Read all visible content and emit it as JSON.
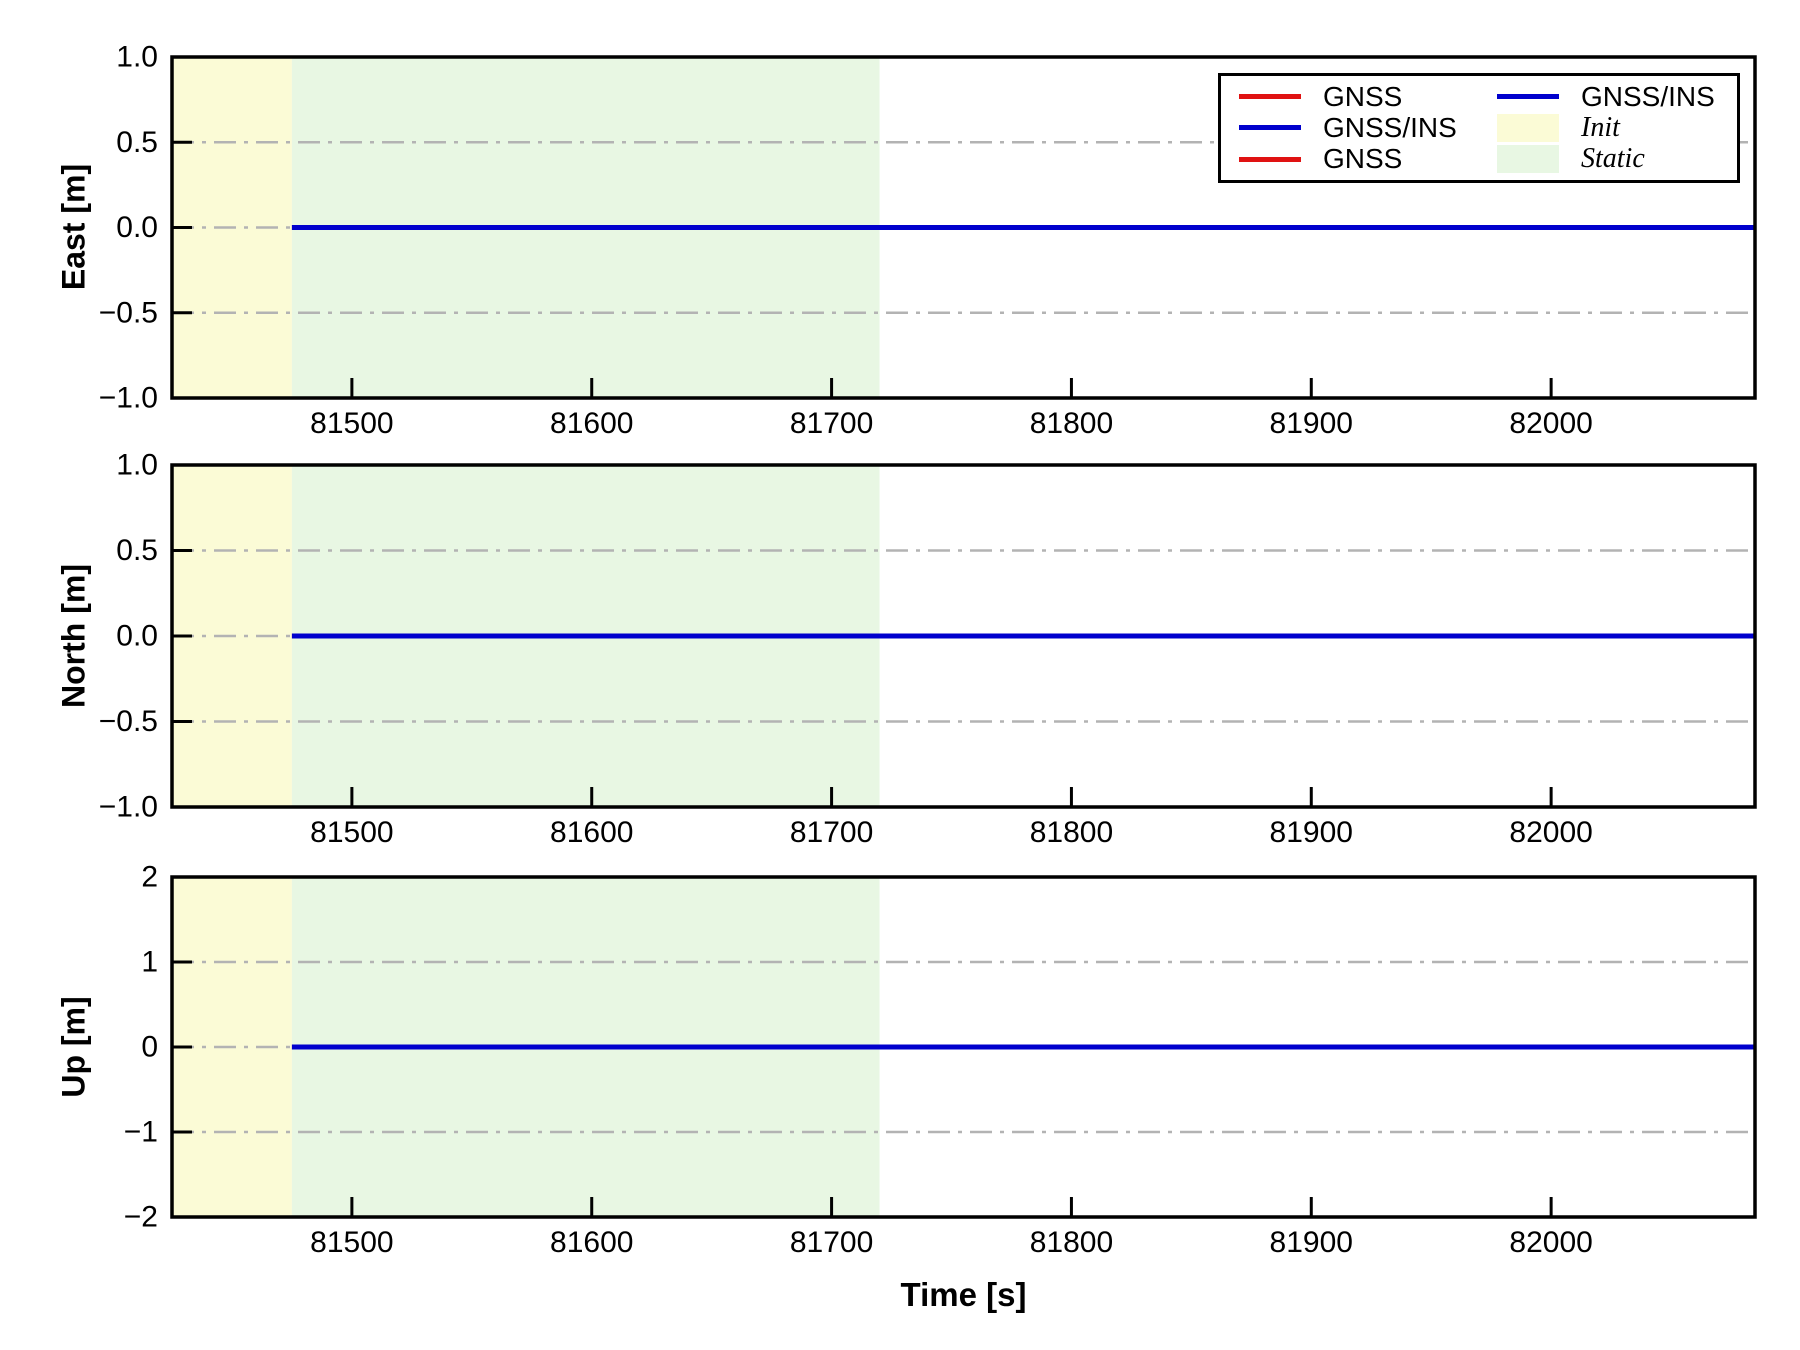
{
  "chart_data": {
    "type": "line",
    "title": "",
    "x_axis": {
      "label": "Time [s]",
      "range": [
        81425,
        82085
      ],
      "ticks": [
        81500,
        81600,
        81700,
        81800,
        81900,
        82000
      ]
    },
    "subplots": [
      {
        "ylabel": "East [m]",
        "ylim": [
          -1.0,
          1.0
        ],
        "yticks": [
          1.0,
          0.5,
          0.0,
          -0.5,
          -1.0
        ],
        "ytick_labels": [
          "1.0",
          "0.5",
          "0.0",
          "−0.5",
          "−1.0"
        ],
        "grid_y": [
          0.5,
          0.0,
          -0.5
        ]
      },
      {
        "ylabel": "North [m]",
        "ylim": [
          -1.0,
          1.0
        ],
        "yticks": [
          1.0,
          0.5,
          0.0,
          -0.5,
          -1.0
        ],
        "ytick_labels": [
          "1.0",
          "0.5",
          "0.0",
          "−0.5",
          "−1.0"
        ],
        "grid_y": [
          0.5,
          0.0,
          -0.5
        ]
      },
      {
        "ylabel": "Up [m]",
        "ylim": [
          -2.0,
          2.0
        ],
        "yticks": [
          2,
          1,
          0,
          -1,
          -2
        ],
        "ytick_labels": [
          "2",
          "1",
          "0",
          "−1",
          "−2"
        ],
        "grid_y": [
          1,
          0,
          -1
        ]
      }
    ],
    "series": [
      {
        "name": "GNSS",
        "color": "#e01212",
        "x": [
          81475,
          82085
        ],
        "y": [
          0,
          0
        ]
      },
      {
        "name": "GNSS/INS",
        "color": "#0000cd",
        "x": [
          81475,
          82085
        ],
        "y": [
          0,
          0
        ]
      }
    ],
    "regions": [
      {
        "name": "Init",
        "color": "#fbfbd6",
        "span": [
          81425,
          81475
        ]
      },
      {
        "name": "Static",
        "color": "#e8f7e3",
        "span": [
          81475,
          81720
        ]
      }
    ],
    "style": {
      "grid_color": "#b3b3b3",
      "axis_color": "#000000",
      "background": "#ffffff"
    },
    "legend": {
      "position": "upper right",
      "columns": [
        {
          "entries": [
            {
              "type": "line",
              "color": "#e01212",
              "label": "GNSS",
              "italic": false
            },
            {
              "type": "line",
              "color": "#0000cd",
              "label": "GNSS/INS",
              "italic": false
            },
            {
              "type": "line",
              "color": "#e01212",
              "label": "GNSS",
              "italic": false
            }
          ]
        },
        {
          "entries": [
            {
              "type": "line",
              "color": "#0000cd",
              "label": "GNSS/INS",
              "italic": false
            },
            {
              "type": "patch",
              "color": "#fbfbd6",
              "label": "Init",
              "italic": true
            },
            {
              "type": "patch",
              "color": "#e8f7e3",
              "label": "Static",
              "italic": true
            }
          ]
        }
      ]
    }
  }
}
